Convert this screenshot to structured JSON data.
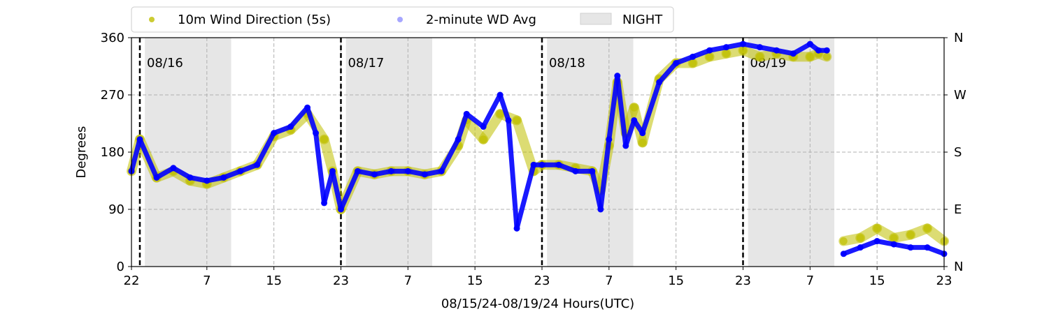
{
  "chart_data": {
    "type": "scatter",
    "title": "",
    "xlabel": "08/15/24-08/19/24  Hours(UTC)",
    "ylabel": "Degrees",
    "x_start_hour": 22,
    "x_end_hour": 119,
    "x_ticks": [
      {
        "hour": 22,
        "label": "22"
      },
      {
        "hour": 31,
        "label": "7"
      },
      {
        "hour": 39,
        "label": "15"
      },
      {
        "hour": 47,
        "label": "23"
      },
      {
        "hour": 55,
        "label": "7"
      },
      {
        "hour": 63,
        "label": "15"
      },
      {
        "hour": 71,
        "label": "23"
      },
      {
        "hour": 79,
        "label": "7"
      },
      {
        "hour": 87,
        "label": "15"
      },
      {
        "hour": 95,
        "label": "23"
      },
      {
        "hour": 103,
        "label": "7"
      },
      {
        "hour": 111,
        "label": "15"
      },
      {
        "hour": 119,
        "label": "23"
      }
    ],
    "ylim": [
      0,
      360
    ],
    "y_ticks": [
      0,
      90,
      180,
      270,
      360
    ],
    "y_tick_labels": [
      "0",
      "90",
      "180",
      "270",
      "360"
    ],
    "y2_tick_labels": [
      "N",
      "E",
      "S",
      "W",
      "N"
    ],
    "grid": true,
    "legend_position": "top-left, outside",
    "legend": [
      {
        "label": "10m Wind Direction (5s)",
        "kind": "marker",
        "color": "#bfbf00"
      },
      {
        "label": "2-minute WD Avg",
        "kind": "marker",
        "color": "#0000ff"
      },
      {
        "label": "NIGHT",
        "kind": "patch",
        "color": "#e6e6e6"
      }
    ],
    "night_spans": [
      [
        23.6,
        33.9
      ],
      [
        47.6,
        57.9
      ],
      [
        71.6,
        81.9
      ],
      [
        95.6,
        105.9
      ]
    ],
    "day_markers": [
      {
        "hour": 23,
        "label": "08/16"
      },
      {
        "hour": 47,
        "label": "08/17"
      },
      {
        "hour": 71,
        "label": "08/18"
      },
      {
        "hour": 95,
        "label": "08/19"
      }
    ],
    "series": [
      {
        "name": "10m Wind Direction (5s)",
        "color": "#bfbf00",
        "x": [
          22,
          23,
          25,
          27,
          29,
          31,
          33,
          35,
          37,
          39,
          41,
          43,
          45,
          46,
          47,
          49,
          51,
          53,
          55,
          57,
          59,
          61,
          62,
          64,
          66,
          68,
          70,
          71,
          73,
          75,
          77,
          78,
          79,
          80,
          81,
          82,
          83,
          85,
          87,
          89,
          91,
          93,
          95,
          97,
          99,
          101,
          103,
          104,
          105,
          107,
          109,
          111,
          113,
          115,
          117,
          119
        ],
        "y": [
          150,
          200,
          140,
          150,
          135,
          130,
          140,
          150,
          160,
          205,
          215,
          240,
          200,
          150,
          90,
          150,
          145,
          150,
          150,
          145,
          150,
          190,
          230,
          200,
          240,
          230,
          150,
          160,
          160,
          155,
          150,
          120,
          190,
          290,
          210,
          250,
          195,
          295,
          320,
          320,
          330,
          335,
          340,
          330,
          335,
          330,
          330,
          335,
          330,
          40,
          45,
          60,
          45,
          50,
          60,
          40
        ]
      },
      {
        "name": "2-minute WD Avg",
        "color": "#0000ff",
        "x": [
          22,
          23,
          25,
          27,
          29,
          31,
          33,
          35,
          37,
          39,
          41,
          43,
          44,
          45,
          46,
          47,
          49,
          51,
          53,
          55,
          57,
          59,
          61,
          62,
          64,
          66,
          67,
          68,
          70,
          71,
          73,
          75,
          77,
          78,
          79,
          80,
          81,
          82,
          83,
          85,
          87,
          89,
          91,
          93,
          95,
          97,
          99,
          101,
          103,
          104,
          105,
          107,
          109,
          111,
          113,
          115,
          117,
          119
        ],
        "y": [
          150,
          200,
          140,
          155,
          140,
          135,
          140,
          150,
          160,
          210,
          220,
          250,
          210,
          100,
          150,
          90,
          150,
          145,
          150,
          150,
          145,
          150,
          200,
          240,
          220,
          270,
          230,
          60,
          160,
          160,
          160,
          150,
          150,
          90,
          200,
          300,
          190,
          230,
          210,
          290,
          320,
          330,
          340,
          345,
          350,
          345,
          340,
          335,
          350,
          340,
          340,
          20,
          30,
          40,
          35,
          30,
          30,
          20
        ]
      }
    ]
  }
}
